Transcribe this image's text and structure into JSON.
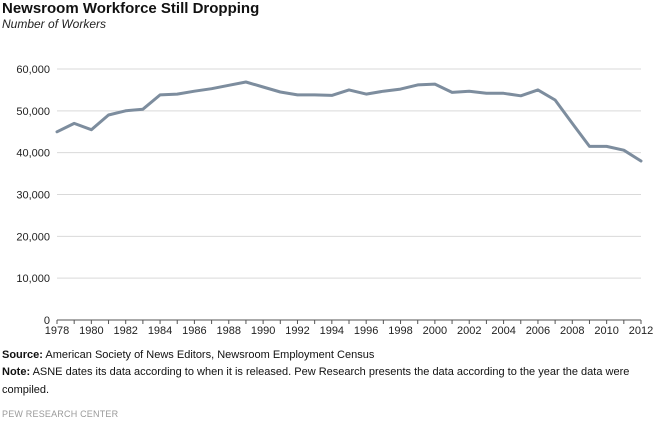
{
  "header": {
    "title": "Newsroom Workforce Still Dropping",
    "subtitle": "Number of Workers"
  },
  "footer": {
    "source_label": "Source:",
    "source_text": "American Society of News Editors, Newsroom Employment Census",
    "note_label": "Note:",
    "note_text": "ASNE dates its data according to when it is released. Pew Research presents the data according to the year the data were compiled.",
    "credit": "PEW RESEARCH CENTER"
  },
  "chart_data": {
    "type": "line",
    "title": "Newsroom Workforce Still Dropping",
    "subtitle": "Number of Workers",
    "xlabel": "",
    "ylabel": "",
    "x": [
      1978,
      1979,
      1980,
      1981,
      1982,
      1983,
      1984,
      1985,
      1986,
      1987,
      1988,
      1989,
      1990,
      1991,
      1992,
      1993,
      1994,
      1995,
      1996,
      1997,
      1998,
      1999,
      2000,
      2001,
      2002,
      2003,
      2004,
      2005,
      2006,
      2007,
      2008,
      2009,
      2010,
      2011,
      2012
    ],
    "series": [
      {
        "values": [
          45000,
          47000,
          45500,
          49000,
          50000,
          50400,
          53800,
          54000,
          54700,
          55300,
          56100,
          56900,
          55700,
          54500,
          53800,
          53800,
          53700,
          55000,
          54000,
          54700,
          55200,
          56200,
          56400,
          54400,
          54700,
          54200,
          54200,
          53600,
          55000,
          52600,
          47000,
          41500,
          41500,
          40600,
          38000
        ]
      }
    ],
    "xlim": [
      1978,
      2012
    ],
    "ylim": [
      0,
      60000
    ],
    "x_ticks": [
      "1978",
      "1980",
      "1982",
      "1984",
      "1986",
      "1988",
      "1990",
      "1992",
      "1994",
      "1996",
      "1998",
      "2000",
      "2002",
      "2004",
      "2006",
      "2008",
      "2010",
      "2012"
    ],
    "y_ticks": [
      "0",
      "10,000",
      "20,000",
      "30,000",
      "40,000",
      "50,000",
      "60,000"
    ],
    "y_tick_values": [
      0,
      10000,
      20000,
      30000,
      40000,
      50000,
      60000
    ],
    "x_tick_values": [
      1978,
      1980,
      1982,
      1984,
      1986,
      1988,
      1990,
      1992,
      1994,
      1996,
      1998,
      2000,
      2002,
      2004,
      2006,
      2008,
      2010,
      2012
    ],
    "grid": "horizontal",
    "line_color": "#7d8d9e",
    "grid_color": "#d9d9d9",
    "axis_color": "#555555"
  }
}
